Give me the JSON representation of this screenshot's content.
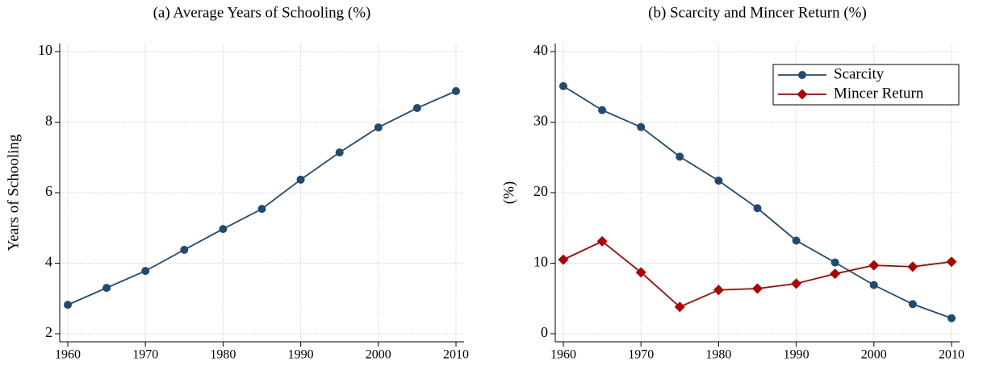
{
  "chart_data": [
    {
      "type": "line",
      "title": "(a) Average Years of Schooling (%)",
      "ylabel": "Years of Schooling",
      "x": [
        1960,
        1965,
        1970,
        1975,
        1980,
        1985,
        1990,
        1995,
        2000,
        2005,
        2010
      ],
      "values": [
        2.82,
        3.3,
        3.78,
        4.38,
        4.97,
        5.54,
        6.37,
        7.14,
        7.85,
        8.4,
        8.88
      ],
      "color": "#1f4a73",
      "marker": "circle",
      "xlim": [
        1960,
        2010
      ],
      "xticks": [
        1960,
        1970,
        1980,
        1990,
        2000,
        2010
      ],
      "ylim": [
        2,
        10
      ],
      "yticks": [
        2,
        4,
        6,
        8,
        10
      ],
      "grid": true
    },
    {
      "type": "line",
      "title": "(b) Scarcity and Mincer Return (%)",
      "ylabel": "(%)",
      "x": [
        1960,
        1965,
        1970,
        1975,
        1980,
        1985,
        1990,
        1995,
        2000,
        2005,
        2010
      ],
      "series": [
        {
          "name": "Scarcity",
          "color": "#1f4a73",
          "marker": "circle",
          "values": [
            35.1,
            31.7,
            29.3,
            25.1,
            21.7,
            17.8,
            13.2,
            10.1,
            6.9,
            4.2,
            2.2
          ]
        },
        {
          "name": "Mincer Return",
          "color": "#b00000",
          "marker": "diamond",
          "values": [
            10.5,
            13.1,
            8.7,
            3.8,
            6.2,
            6.4,
            7.1,
            8.5,
            9.7,
            9.5,
            10.2
          ]
        }
      ],
      "xlim": [
        1960,
        2010
      ],
      "xticks": [
        1960,
        1970,
        1980,
        1990,
        2000,
        2010
      ],
      "ylim": [
        0,
        40
      ],
      "yticks": [
        0,
        10,
        20,
        30,
        40
      ],
      "grid": true,
      "legend": "top-right"
    }
  ]
}
